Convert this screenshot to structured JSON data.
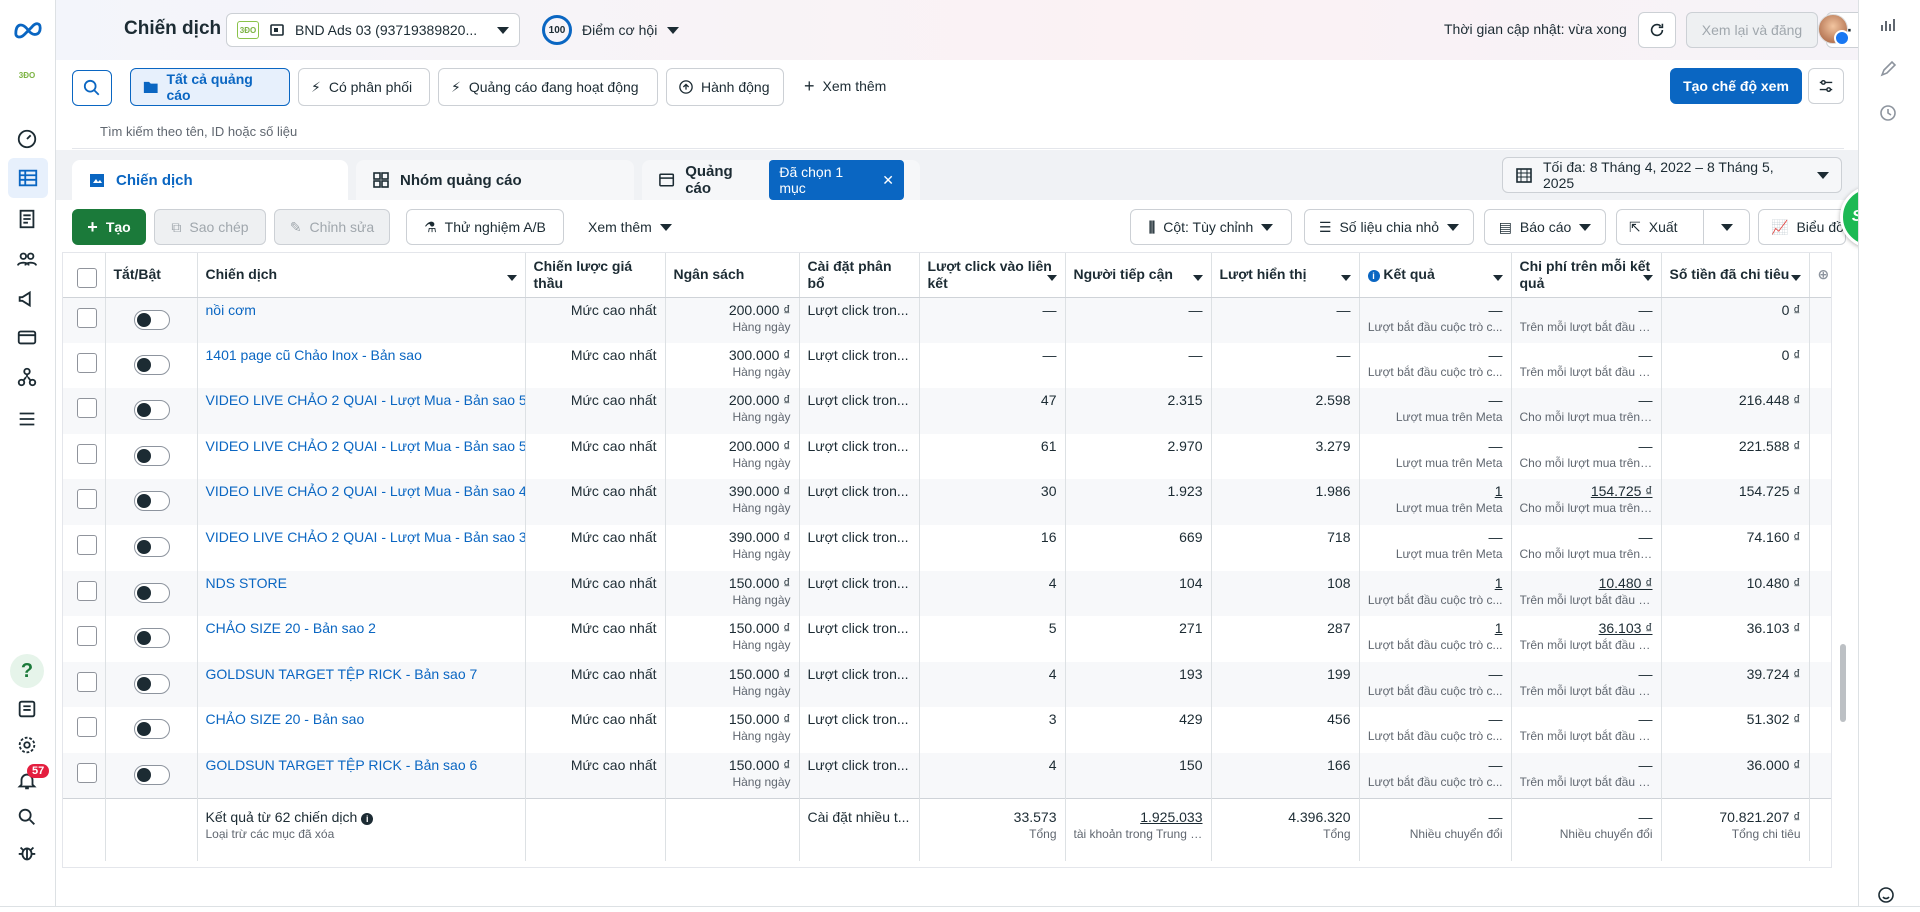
{
  "header": {
    "title": "Chiến dịch",
    "account": "BND Ads 03 (93719389820...",
    "account_logo": "3ĐO",
    "opportunity_score": "100",
    "opportunity_label": "Điểm cơ hội",
    "update_time": "Thời gian cập nhật: vừa xong",
    "review_publish": "Xem lại và đăng",
    "more": "⋯"
  },
  "filters": {
    "all_ads": "Tất cả quảng cáo",
    "with_delivery": "Có phân phối",
    "active_ads": "Quảng cáo đang hoạt động",
    "actions": "Hành động",
    "see_more": "Xem thêm",
    "create_view": "Tạo chế độ xem",
    "search_placeholder": "Tìm kiếm theo tên, ID hoặc số liệu"
  },
  "tabs": {
    "campaigns": "Chiến dịch",
    "adsets": "Nhóm quảng cáo",
    "ads": "Quảng cáo",
    "selected": "Đã chọn 1 mục",
    "date_range": "Tối đa: 8 Tháng 4, 2022 – 8 Tháng 5, 2025"
  },
  "toolbar": {
    "create": "Tạo",
    "copy": "Sao chép",
    "edit": "Chỉnh sửa",
    "ab_test": "Thử nghiệm A/B",
    "see_more": "Xem thêm",
    "columns": "Cột: Tùy chỉnh",
    "breakdown": "Số liệu chia nhỏ",
    "reports": "Báo cáo",
    "export": "Xuất",
    "charts": "Biểu đồ",
    "smit": "SMIT"
  },
  "columns": [
    "Tắt/Bật",
    "Chiến dịch",
    "Chiến lược giá thầu",
    "Ngân sách",
    "Cài đặt phân bổ",
    "Lượt click vào liên kết",
    "Người tiếp cận",
    "Lượt hiển thị",
    "Kết quả",
    "Chi phí trên mỗi kết quả",
    "Số tiền đã chi tiêu"
  ],
  "rows": [
    {
      "name": "nồi cơm",
      "bid": "Mức cao nhất",
      "budget": "200.000 ₫",
      "period": "Hàng ngày",
      "attr": "Lượt click tron...",
      "clicks": "—",
      "reach": "—",
      "impr": "—",
      "result": "—",
      "result_sub": "Lượt bắt đầu cuộc trò c...",
      "cpr": "—",
      "cpr_sub": "Trên mỗi lượt bắt đầu cu...",
      "spent": "0 ₫"
    },
    {
      "name": "1401 page cũ Chảo Inox - Bản sao",
      "bid": "Mức cao nhất",
      "budget": "300.000 ₫",
      "period": "Hàng ngày",
      "attr": "Lượt click tron...",
      "clicks": "—",
      "reach": "—",
      "impr": "—",
      "result": "—",
      "result_sub": "Lượt bắt đầu cuộc trò c...",
      "cpr": "—",
      "cpr_sub": "Trên mỗi lượt bắt đầu cu...",
      "spent": "0 ₫"
    },
    {
      "name": "VIDEO LIVE CHẢO 2 QUAI - Lượt Mua - Bản sao 5",
      "bid": "Mức cao nhất",
      "budget": "200.000 ₫",
      "period": "Hàng ngày",
      "attr": "Lượt click tron...",
      "clicks": "47",
      "reach": "2.315",
      "impr": "2.598",
      "result": "—",
      "result_sub": "Lượt mua trên Meta",
      "cpr": "—",
      "cpr_sub": "Cho mỗi lượt mua trên ...",
      "spent": "216.448 ₫"
    },
    {
      "name": "VIDEO LIVE CHẢO 2 QUAI - Lượt Mua - Bản sao 5",
      "bid": "Mức cao nhất",
      "budget": "200.000 ₫",
      "period": "Hàng ngày",
      "attr": "Lượt click tron...",
      "clicks": "61",
      "reach": "2.970",
      "impr": "3.279",
      "result": "—",
      "result_sub": "Lượt mua trên Meta",
      "cpr": "—",
      "cpr_sub": "Cho mỗi lượt mua trên ...",
      "spent": "221.588 ₫"
    },
    {
      "name": "VIDEO LIVE CHẢO 2 QUAI - Lượt Mua - Bản sao 4",
      "bid": "Mức cao nhất",
      "budget": "390.000 ₫",
      "period": "Hàng ngày",
      "attr": "Lượt click tron...",
      "clicks": "30",
      "reach": "1.923",
      "impr": "1.986",
      "result": "1",
      "result_sub": "Lượt mua trên Meta",
      "cpr": "154.725 ₫",
      "cpr_sub": "Cho mỗi lượt mua trên ...",
      "spent": "154.725 ₫"
    },
    {
      "name": "VIDEO LIVE CHẢO 2 QUAI - Lượt Mua - Bản sao 3",
      "bid": "Mức cao nhất",
      "budget": "390.000 ₫",
      "period": "Hàng ngày",
      "attr": "Lượt click tron...",
      "clicks": "16",
      "reach": "669",
      "impr": "718",
      "result": "—",
      "result_sub": "Lượt mua trên Meta",
      "cpr": "—",
      "cpr_sub": "Cho mỗi lượt mua trên ...",
      "spent": "74.160 ₫"
    },
    {
      "name": "NDS STORE",
      "bid": "Mức cao nhất",
      "budget": "150.000 ₫",
      "period": "Hàng ngày",
      "attr": "Lượt click tron...",
      "clicks": "4",
      "reach": "104",
      "impr": "108",
      "result": "1",
      "result_sub": "Lượt bắt đầu cuộc trò c...",
      "cpr": "10.480 ₫",
      "cpr_sub": "Trên mỗi lượt bắt đầu cu...",
      "spent": "10.480 ₫"
    },
    {
      "name": "CHẢO SIZE 20 - Bản sao 2",
      "bid": "Mức cao nhất",
      "budget": "150.000 ₫",
      "period": "Hàng ngày",
      "attr": "Lượt click tron...",
      "clicks": "5",
      "reach": "271",
      "impr": "287",
      "result": "1",
      "result_sub": "Lượt bắt đầu cuộc trò c...",
      "cpr": "36.103 ₫",
      "cpr_sub": "Trên mỗi lượt bắt đầu cu...",
      "spent": "36.103 ₫"
    },
    {
      "name": "GOLDSUN TARGET TỆP RICK - Bản sao 7",
      "bid": "Mức cao nhất",
      "budget": "150.000 ₫",
      "period": "Hàng ngày",
      "attr": "Lượt click tron...",
      "clicks": "4",
      "reach": "193",
      "impr": "199",
      "result": "—",
      "result_sub": "Lượt bắt đầu cuộc trò c...",
      "cpr": "—",
      "cpr_sub": "Trên mỗi lượt bắt đầu cu...",
      "spent": "39.724 ₫"
    },
    {
      "name": "CHẢO SIZE 20 - Bản sao",
      "bid": "Mức cao nhất",
      "budget": "150.000 ₫",
      "period": "Hàng ngày",
      "attr": "Lượt click tron...",
      "clicks": "3",
      "reach": "429",
      "impr": "456",
      "result": "—",
      "result_sub": "Lượt bắt đầu cuộc trò c...",
      "cpr": "—",
      "cpr_sub": "Trên mỗi lượt bắt đầu cu...",
      "spent": "51.302 ₫"
    },
    {
      "name": "GOLDSUN TARGET TỆP RICK - Bản sao 6",
      "bid": "Mức cao nhất",
      "budget": "150.000 ₫",
      "period": "Hàng ngày",
      "attr": "Lượt click tron...",
      "clicks": "4",
      "reach": "150",
      "impr": "166",
      "result": "—",
      "result_sub": "Lượt bắt đầu cuộc trò c...",
      "cpr": "—",
      "cpr_sub": "Trên mỗi lượt bắt đầu cu...",
      "spent": "36.000 ₫"
    }
  ],
  "footer": {
    "results": "Kết quả từ 62 chiến dịch",
    "excluded": "Loại trừ các mục đã xóa",
    "attr": "Cài đặt nhiều t...",
    "clicks": "33.573",
    "clicks_sub": "Tổng",
    "reach": "1.925.033",
    "reach_sub": "tài khoản trong Trung t...",
    "impr": "4.396.320",
    "impr_sub": "Tổng",
    "result": "—",
    "result_sub": "Nhiều chuyển đổi",
    "cpr": "—",
    "cpr_sub": "Nhiều chuyển đổi",
    "spent": "70.821.207 ₫",
    "spent_sub": "Tổng chi tiêu"
  },
  "nav": {
    "notifications": "57",
    "help": "?"
  }
}
